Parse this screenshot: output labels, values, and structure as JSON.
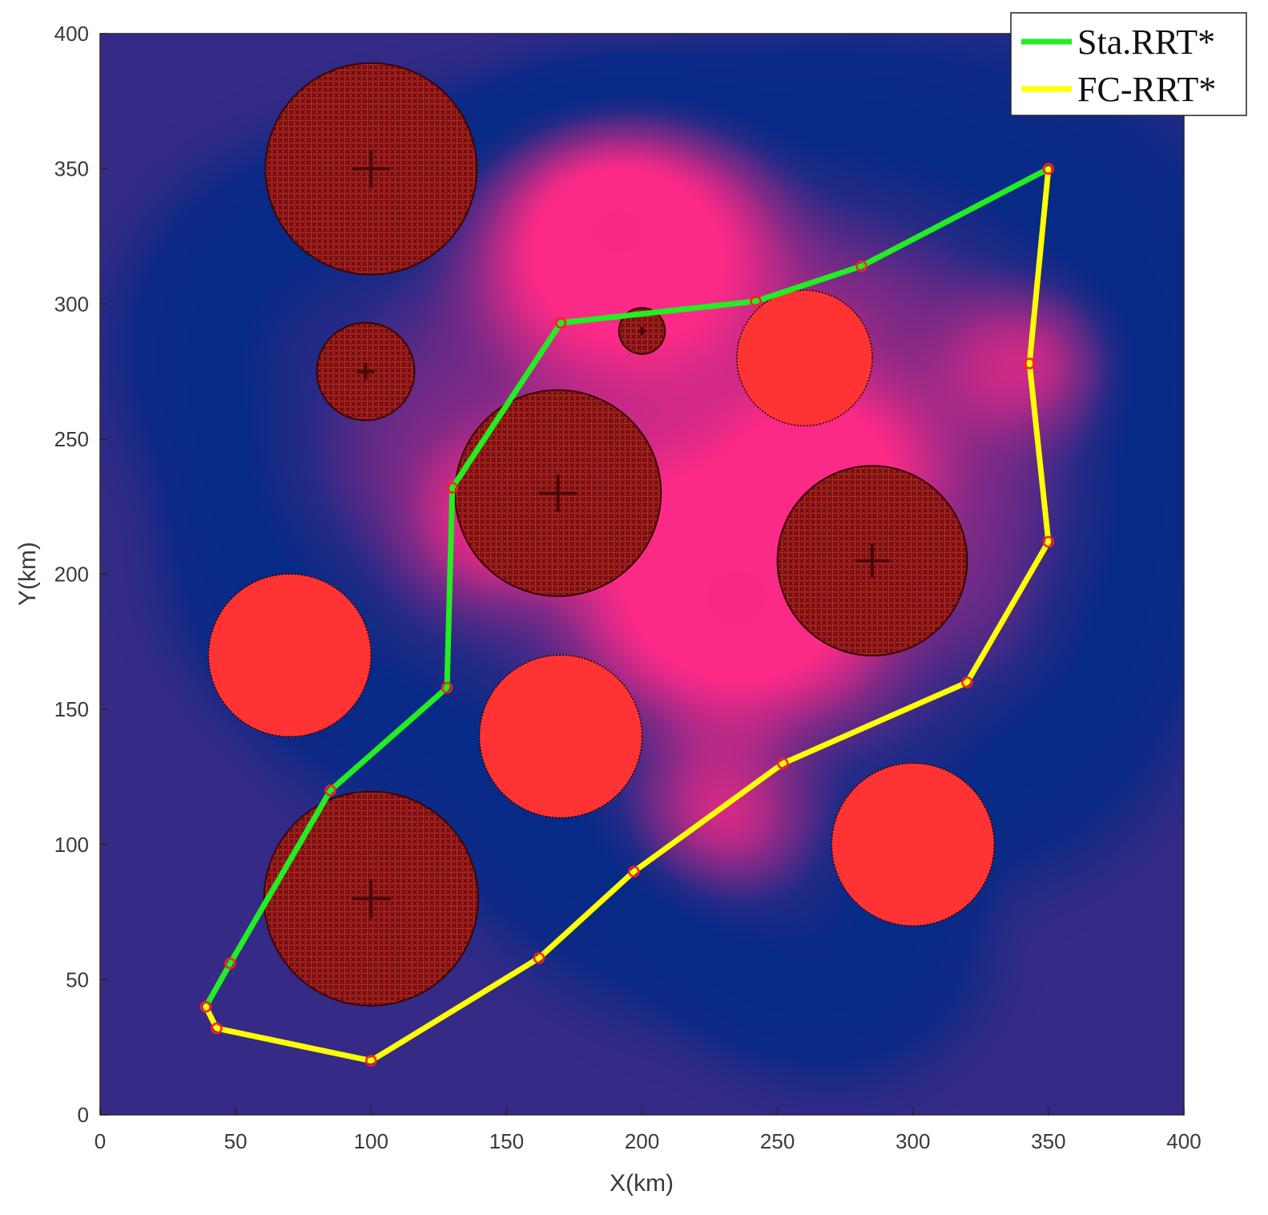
{
  "chart_data": {
    "type": "line",
    "xlabel": "X(km)",
    "ylabel": "Y(km)",
    "xlim": [
      0,
      400
    ],
    "ylim": [
      0,
      400
    ],
    "xticks": [
      0,
      50,
      100,
      150,
      200,
      250,
      300,
      350,
      400
    ],
    "yticks": [
      0,
      50,
      100,
      150,
      200,
      250,
      300,
      350,
      400
    ],
    "grid": false,
    "legend_position": "top-right",
    "background": "terrain heatmap (parula colormap: dark blue low, yellow high)",
    "heat_peaks": [
      {
        "x": 190,
        "y": 330,
        "level": 1.0
      },
      {
        "x": 235,
        "y": 190,
        "level": 1.0
      },
      {
        "x": 270,
        "y": 240,
        "level": 0.5
      },
      {
        "x": 345,
        "y": 280,
        "level": 0.45
      },
      {
        "x": 150,
        "y": 220,
        "level": 0.45
      },
      {
        "x": 230,
        "y": 110,
        "level": 0.5
      }
    ],
    "obstacles": [
      {
        "cx": 100,
        "cy": 350,
        "r": 39,
        "style": "textured"
      },
      {
        "cx": 98,
        "cy": 275,
        "r": 18,
        "style": "textured"
      },
      {
        "cx": 200,
        "cy": 290,
        "r": 8.5,
        "style": "textured"
      },
      {
        "cx": 169,
        "cy": 230,
        "r": 38,
        "style": "textured"
      },
      {
        "cx": 285,
        "cy": 205,
        "r": 35,
        "style": "textured"
      },
      {
        "cx": 100,
        "cy": 80,
        "r": 39.5,
        "style": "textured"
      },
      {
        "cx": 260,
        "cy": 280,
        "r": 25,
        "style": "solid"
      },
      {
        "cx": 70,
        "cy": 170,
        "r": 30,
        "style": "solid"
      },
      {
        "cx": 170,
        "cy": 140,
        "r": 30,
        "style": "solid"
      },
      {
        "cx": 300,
        "cy": 100,
        "r": 30,
        "style": "solid"
      }
    ],
    "series": [
      {
        "name": "Sta.RRT*",
        "color": "#22ee22",
        "x": [
          39,
          48,
          85,
          128,
          130,
          170,
          242,
          281,
          350
        ],
        "y": [
          40,
          56,
          120,
          158,
          232,
          293,
          301,
          314,
          350
        ]
      },
      {
        "name": "FC-RRT*",
        "color": "#ffff00",
        "x": [
          39,
          43,
          100,
          162,
          197,
          252,
          320,
          350,
          343,
          350
        ],
        "y": [
          40,
          32,
          20,
          58,
          90,
          130,
          160,
          212,
          278,
          350
        ]
      }
    ],
    "marker_color": "#ff2020",
    "obstacle_color": "#ff3333",
    "obstacle_texture_color": "#8b1515"
  }
}
